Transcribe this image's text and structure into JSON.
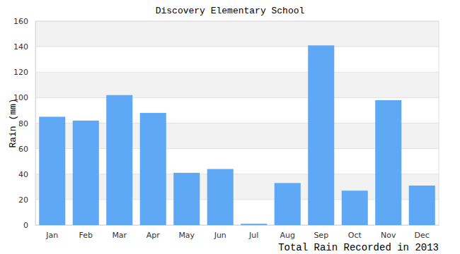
{
  "chart_data": {
    "type": "bar",
    "title": "Discovery Elementary School",
    "y_label": "Rain (mm)",
    "x_label": "Total Rain Recorded in 2013",
    "categories": [
      "Jan",
      "Feb",
      "Mar",
      "Apr",
      "May",
      "Jun",
      "Jul",
      "Aug",
      "Sep",
      "Oct",
      "Nov",
      "Dec"
    ],
    "values": [
      85,
      82,
      102,
      88,
      41,
      44,
      1,
      33,
      141,
      27,
      98,
      31
    ],
    "color": "#5fa8f5",
    "ylim": [
      0,
      160
    ],
    "yticks": [
      0,
      20,
      40,
      60,
      80,
      100,
      120,
      140,
      160
    ],
    "grid": true
  }
}
